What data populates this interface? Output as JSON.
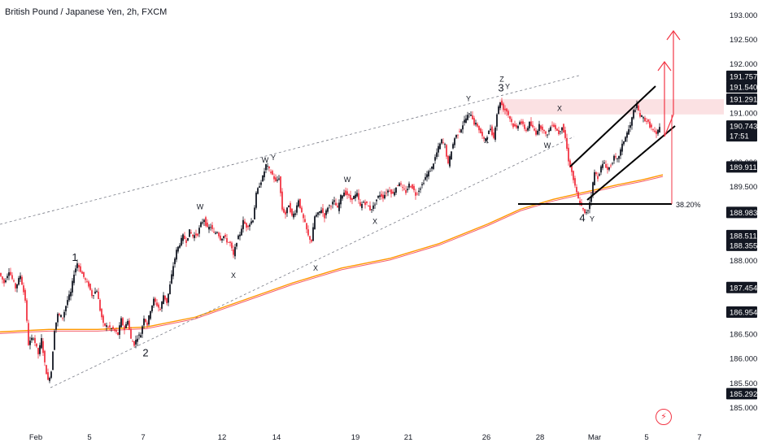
{
  "title": "British Pound / Japanese Yen, 2h, FXCM",
  "icons": {
    "alert": "lightning-alert-icon"
  },
  "colors": {
    "bull": "#131722",
    "bear": "#f23645",
    "ma1": "#ff9800",
    "ma2": "#f23645",
    "trend": "#787b86",
    "zone": "#f7c9cc",
    "arrow": "#f23645",
    "badge": "#131722"
  },
  "chart_data": {
    "type": "candlestick",
    "symbol": "GBPJPY",
    "timeframe": "2h",
    "x_ticks": [
      "Feb",
      "5",
      "7",
      "12",
      "14",
      "19",
      "21",
      "26",
      "28",
      "Mar",
      "5",
      "7"
    ],
    "y_ticks": [
      "185.000",
      "185.500",
      "186.000",
      "186.500",
      "187.000",
      "187.500",
      "188.000",
      "188.500",
      "189.500",
      "190.000",
      "191.000",
      "191.500",
      "192.000",
      "192.500",
      "193.000"
    ],
    "ylim": [
      184.95,
      193.15
    ],
    "price_badges": [
      {
        "value": "191.757"
      },
      {
        "value": "191.540"
      },
      {
        "value": "191.291"
      },
      {
        "value": "190.743",
        "sub": "17:51"
      },
      {
        "value": "189.911"
      },
      {
        "value": "188.983"
      },
      {
        "value": "188.511",
        "sub": "188.355"
      },
      {
        "value": "187.454"
      },
      {
        "value": "186.954"
      },
      {
        "value": "185.292"
      }
    ],
    "path_points": [
      [
        0,
        187.75
      ],
      [
        6,
        187.55
      ],
      [
        12,
        187.8
      ],
      [
        20,
        187.45
      ],
      [
        26,
        187.7
      ],
      [
        32,
        187.2
      ],
      [
        36,
        186.3
      ],
      [
        42,
        186.45
      ],
      [
        48,
        186.1
      ],
      [
        52,
        186.4
      ],
      [
        56,
        185.9
      ],
      [
        60,
        185.55
      ],
      [
        64,
        185.75
      ],
      [
        68,
        186.6
      ],
      [
        72,
        186.9
      ],
      [
        78,
        186.85
      ],
      [
        84,
        187.2
      ],
      [
        88,
        187.35
      ],
      [
        92,
        187.75
      ],
      [
        96,
        187.95
      ],
      [
        100,
        187.8
      ],
      [
        106,
        187.6
      ],
      [
        110,
        187.5
      ],
      [
        114,
        187.3
      ],
      [
        120,
        187.4
      ],
      [
        124,
        187.0
      ],
      [
        128,
        186.7
      ],
      [
        134,
        186.65
      ],
      [
        140,
        186.6
      ],
      [
        146,
        186.5
      ],
      [
        150,
        186.8
      ],
      [
        154,
        186.6
      ],
      [
        158,
        186.8
      ],
      [
        162,
        186.4
      ],
      [
        166,
        186.3
      ],
      [
        170,
        186.45
      ],
      [
        174,
        186.5
      ],
      [
        178,
        186.85
      ],
      [
        182,
        186.7
      ],
      [
        186,
        187.0
      ],
      [
        190,
        187.2
      ],
      [
        194,
        187.1
      ],
      [
        198,
        187.0
      ],
      [
        202,
        187.3
      ],
      [
        206,
        187.15
      ],
      [
        210,
        187.5
      ],
      [
        214,
        187.9
      ],
      [
        218,
        188.2
      ],
      [
        222,
        188.35
      ],
      [
        226,
        188.5
      ],
      [
        230,
        188.4
      ],
      [
        234,
        188.6
      ],
      [
        238,
        188.5
      ],
      [
        244,
        188.55
      ],
      [
        248,
        188.75
      ],
      [
        252,
        188.85
      ],
      [
        256,
        188.65
      ],
      [
        260,
        188.7
      ],
      [
        264,
        188.55
      ],
      [
        268,
        188.6
      ],
      [
        272,
        188.45
      ],
      [
        276,
        188.5
      ],
      [
        280,
        188.4
      ],
      [
        284,
        188.35
      ],
      [
        288,
        188.1
      ],
      [
        292,
        188.4
      ],
      [
        296,
        188.55
      ],
      [
        300,
        188.8
      ],
      [
        304,
        188.7
      ],
      [
        308,
        188.75
      ],
      [
        312,
        188.85
      ],
      [
        316,
        189.35
      ],
      [
        320,
        189.55
      ],
      [
        324,
        189.7
      ],
      [
        328,
        189.95
      ],
      [
        332,
        189.85
      ],
      [
        336,
        189.75
      ],
      [
        340,
        189.6
      ],
      [
        344,
        189.7
      ],
      [
        348,
        189.05
      ],
      [
        352,
        188.95
      ],
      [
        356,
        189.15
      ],
      [
        360,
        188.9
      ],
      [
        364,
        189.0
      ],
      [
        368,
        189.25
      ],
      [
        372,
        188.95
      ],
      [
        376,
        188.75
      ],
      [
        380,
        188.5
      ],
      [
        384,
        188.4
      ],
      [
        388,
        188.9
      ],
      [
        392,
        188.95
      ],
      [
        396,
        189.05
      ],
      [
        400,
        188.9
      ],
      [
        404,
        189.1
      ],
      [
        408,
        189.15
      ],
      [
        412,
        189.2
      ],
      [
        416,
        189.05
      ],
      [
        420,
        189.3
      ],
      [
        424,
        189.4
      ],
      [
        428,
        189.35
      ],
      [
        432,
        189.25
      ],
      [
        436,
        189.3
      ],
      [
        440,
        189.35
      ],
      [
        444,
        189.1
      ],
      [
        448,
        189.2
      ],
      [
        452,
        189.15
      ],
      [
        456,
        189.05
      ],
      [
        460,
        189.1
      ],
      [
        464,
        189.25
      ],
      [
        468,
        189.35
      ],
      [
        472,
        189.3
      ],
      [
        476,
        189.4
      ],
      [
        480,
        189.45
      ],
      [
        484,
        189.35
      ],
      [
        488,
        189.5
      ],
      [
        492,
        189.6
      ],
      [
        496,
        189.45
      ],
      [
        500,
        189.4
      ],
      [
        504,
        189.55
      ],
      [
        508,
        189.5
      ],
      [
        512,
        189.35
      ],
      [
        516,
        189.45
      ],
      [
        520,
        189.55
      ],
      [
        524,
        189.7
      ],
      [
        528,
        189.8
      ],
      [
        532,
        189.9
      ],
      [
        536,
        190.1
      ],
      [
        540,
        190.3
      ],
      [
        544,
        190.45
      ],
      [
        548,
        190.35
      ],
      [
        552,
        189.95
      ],
      [
        556,
        190.25
      ],
      [
        560,
        190.5
      ],
      [
        564,
        190.6
      ],
      [
        568,
        190.7
      ],
      [
        572,
        190.85
      ],
      [
        576,
        190.95
      ],
      [
        580,
        191.0
      ],
      [
        584,
        190.8
      ],
      [
        588,
        190.75
      ],
      [
        592,
        190.6
      ],
      [
        596,
        190.45
      ],
      [
        600,
        190.55
      ],
      [
        604,
        190.7
      ],
      [
        608,
        190.5
      ],
      [
        612,
        191.0
      ],
      [
        616,
        191.25
      ],
      [
        620,
        191.1
      ],
      [
        624,
        191.05
      ],
      [
        628,
        190.9
      ],
      [
        632,
        190.75
      ],
      [
        636,
        190.7
      ],
      [
        640,
        190.85
      ],
      [
        644,
        190.75
      ],
      [
        648,
        190.65
      ],
      [
        652,
        190.8
      ],
      [
        656,
        190.7
      ],
      [
        660,
        190.6
      ],
      [
        664,
        190.75
      ],
      [
        668,
        190.7
      ],
      [
        672,
        190.55
      ],
      [
        676,
        190.65
      ],
      [
        680,
        190.8
      ],
      [
        684,
        190.7
      ],
      [
        688,
        190.6
      ],
      [
        692,
        190.75
      ],
      [
        696,
        190.5
      ],
      [
        700,
        190.05
      ],
      [
        704,
        189.8
      ],
      [
        708,
        189.5
      ],
      [
        712,
        189.25
      ],
      [
        716,
        189.1
      ],
      [
        720,
        188.95
      ],
      [
        724,
        189.05
      ],
      [
        728,
        189.35
      ],
      [
        732,
        189.8
      ],
      [
        736,
        189.7
      ],
      [
        740,
        189.9
      ],
      [
        744,
        190.0
      ],
      [
        748,
        189.85
      ],
      [
        752,
        189.95
      ],
      [
        756,
        190.1
      ],
      [
        760,
        190.05
      ],
      [
        764,
        190.25
      ],
      [
        768,
        190.45
      ],
      [
        772,
        190.6
      ],
      [
        776,
        190.75
      ],
      [
        780,
        191.05
      ],
      [
        784,
        191.15
      ],
      [
        788,
        190.95
      ],
      [
        792,
        190.9
      ],
      [
        796,
        190.85
      ],
      [
        800,
        190.75
      ],
      [
        804,
        190.65
      ],
      [
        808,
        190.55
      ],
      [
        812,
        190.75
      ]
    ],
    "wave_labels": [
      {
        "text": "1",
        "x": 92,
        "price": 188.0,
        "big": true
      },
      {
        "text": "2",
        "x": 179,
        "price": 186.05,
        "big": true
      },
      {
        "text": "3",
        "x": 616,
        "price": 191.45,
        "big": true
      },
      {
        "text": "4",
        "x": 716,
        "price": 188.8,
        "big": true
      },
      {
        "text": "Z",
        "x": 617,
        "price": 191.65
      },
      {
        "text": "Y",
        "x": 624,
        "price": 191.5
      },
      {
        "text": "W",
        "x": 246,
        "price": 189.05
      },
      {
        "text": "X",
        "x": 287,
        "price": 187.65
      },
      {
        "text": "W",
        "x": 326,
        "price": 190.0
      },
      {
        "text": "Y",
        "x": 336,
        "price": 190.05
      },
      {
        "text": "X",
        "x": 388,
        "price": 187.8
      },
      {
        "text": "W",
        "x": 427,
        "price": 189.6
      },
      {
        "text": "X",
        "x": 461,
        "price": 188.75
      },
      {
        "text": "Y",
        "x": 576,
        "price": 191.25
      },
      {
        "text": "X",
        "x": 598,
        "price": 190.4
      },
      {
        "text": "X",
        "x": 688,
        "price": 191.05
      },
      {
        "text": "W",
        "x": 673,
        "price": 190.3
      },
      {
        "text": "Y",
        "x": 728,
        "price": 188.8
      }
    ],
    "fib_label": "38.20%"
  }
}
